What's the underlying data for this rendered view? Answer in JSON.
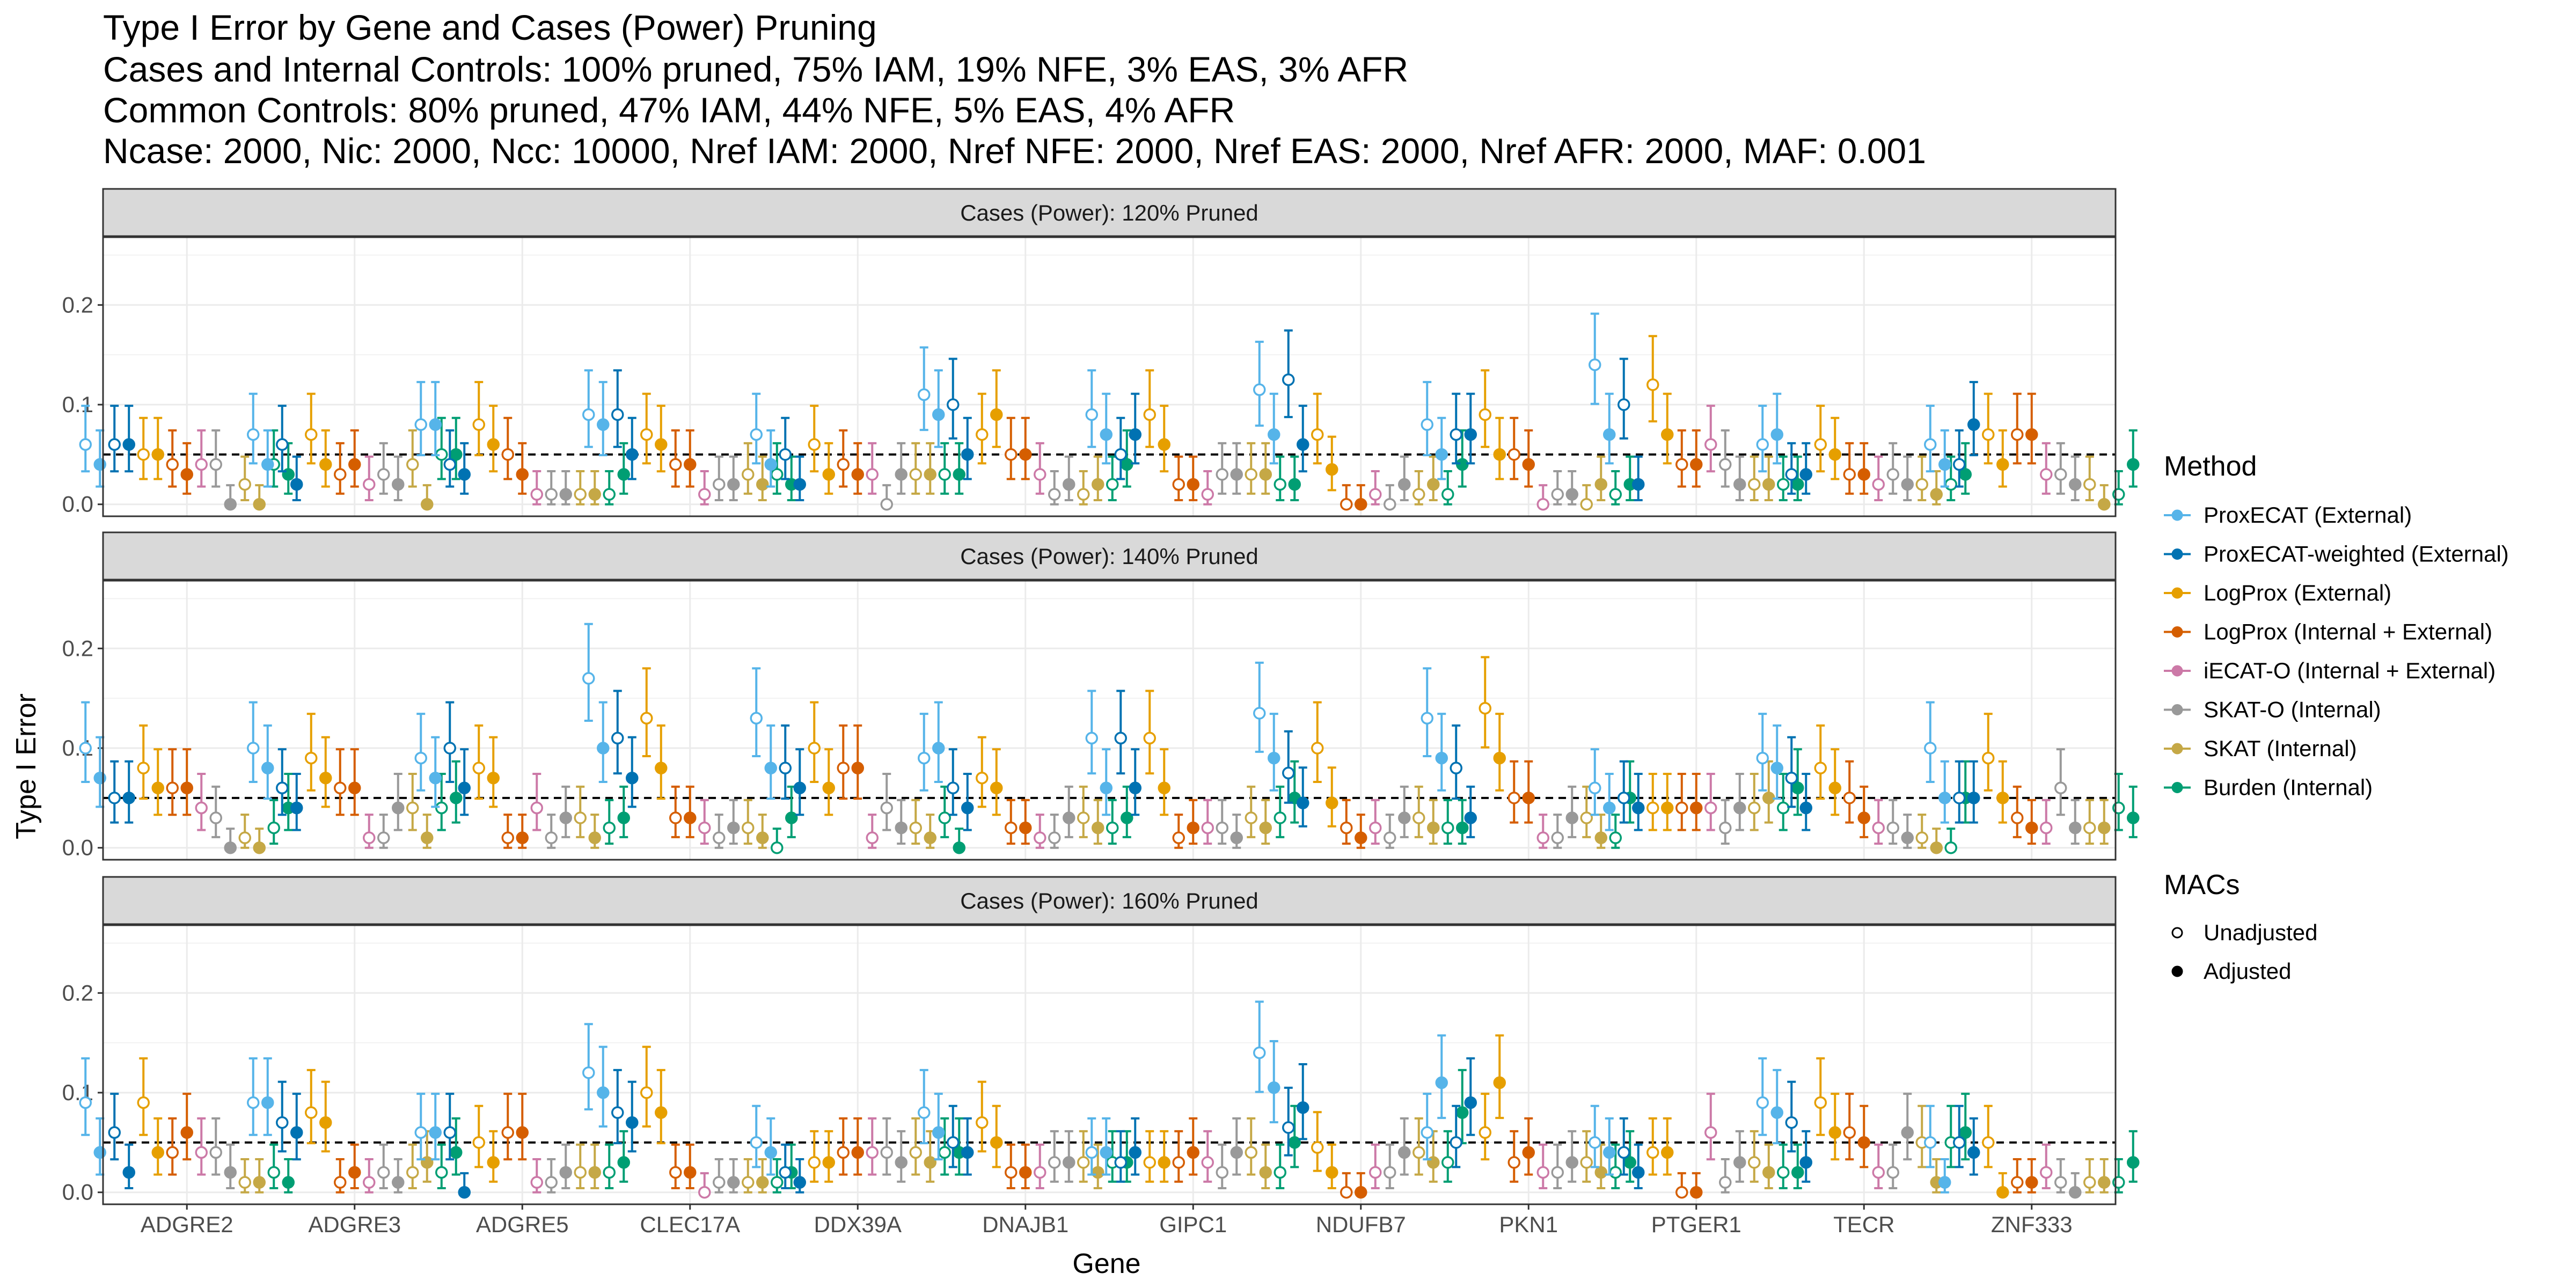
{
  "chart_data": {
    "type": "scatter",
    "title": "Type I Error by Gene and Cases (Power) Pruning",
    "subtitle": [
      "Cases and Internal Controls: 100% pruned, 75% IAM, 19% NFE, 3% EAS, 3% AFR",
      "Common Controls: 80% pruned, 47% IAM, 44% NFE, 5% EAS, 4% AFR",
      "Ncase: 2000, Nic: 2000, Ncc: 10000, Nref IAM: 2000, Nref NFE: 2000, Nref EAS: 2000, Nref AFR: 2000, MAF: 0.001"
    ],
    "xlabel": "Gene",
    "ylabel": "Type I Error",
    "ylim": [
      -0.012,
      0.268
    ],
    "yticks": [
      "0.0",
      "0.1",
      "0.2"
    ],
    "reference_line": 0.05,
    "grid": true,
    "genes": [
      "ADGRE2",
      "ADGRE3",
      "ADGRE5",
      "CLEC17A",
      "DDX39A",
      "DNAJB1",
      "GIPC1",
      "NDUFB7",
      "PKN1",
      "PTGER1",
      "TECR",
      "ZNF333"
    ],
    "legend": {
      "placement": "right",
      "method_title": "Method",
      "methods": [
        {
          "name": "ProxECAT (External)",
          "color": "#56B4E9"
        },
        {
          "name": "ProxECAT-weighted (External)",
          "color": "#0072B2"
        },
        {
          "name": "LogProx (External)",
          "color": "#E69F00"
        },
        {
          "name": "LogProx (Internal + External)",
          "color": "#D55E00"
        },
        {
          "name": "iECAT-O (Internal + External)",
          "color": "#CC79A7"
        },
        {
          "name": "SKAT-O (Internal)",
          "color": "#999999"
        },
        {
          "name": "SKAT (Internal)",
          "color": "#C5A846"
        },
        {
          "name": "Burden (Internal)",
          "color": "#009E73"
        }
      ],
      "mac_title": "MACs",
      "macs": [
        {
          "name": "Unadjusted",
          "shape": "open-circle"
        },
        {
          "name": "Adjusted",
          "shape": "filled-circle"
        }
      ]
    },
    "panels": [
      {
        "label": "Cases (Power): 120% Pruned",
        "values": [
          [
            0.06,
            0.04,
            0.06,
            0.06,
            0.05,
            0.05,
            0.04,
            0.03,
            0.04,
            0.04,
            0.0,
            0.02,
            0.0,
            0.04,
            0.03
          ],
          [
            0.07,
            0.04,
            0.06,
            0.02,
            0.07,
            0.04,
            0.03,
            0.04,
            0.02,
            0.03,
            0.02,
            0.04,
            0.0,
            0.05,
            0.05
          ],
          [
            0.08,
            0.08,
            0.04,
            0.03,
            0.08,
            0.06,
            0.05,
            0.03,
            0.01,
            0.01,
            0.01,
            0.01,
            0.01,
            0.01,
            0.03
          ],
          [
            0.09,
            0.08,
            0.09,
            0.05,
            0.07,
            0.06,
            0.04,
            0.04,
            0.01,
            0.02,
            0.02,
            0.03,
            0.02,
            0.03,
            0.02
          ],
          [
            0.07,
            0.04,
            0.05,
            0.02,
            0.06,
            0.03,
            0.04,
            0.03,
            0.03,
            0.0,
            0.03,
            0.03,
            0.03,
            0.03,
            0.03
          ],
          [
            0.11,
            0.09,
            0.1,
            0.05,
            0.07,
            0.09,
            0.05,
            0.05,
            0.03,
            0.01,
            0.02,
            0.01,
            0.02,
            0.02,
            0.04
          ],
          [
            0.09,
            0.07,
            0.05,
            0.07,
            0.09,
            0.06,
            0.02,
            0.02,
            0.01,
            0.03,
            0.03,
            0.03,
            0.03,
            0.02,
            0.02
          ],
          [
            0.115,
            0.07,
            0.125,
            0.06,
            0.07,
            0.035,
            0.0,
            0.0,
            0.01,
            0.0,
            0.02,
            0.01,
            0.02,
            0.01,
            0.04
          ],
          [
            0.08,
            0.05,
            0.07,
            0.07,
            0.09,
            0.05,
            0.05,
            0.04,
            0.0,
            0.01,
            0.01,
            0.0,
            0.02,
            0.01,
            0.02
          ],
          [
            0.14,
            0.07,
            0.1,
            0.02,
            0.12,
            0.07,
            0.04,
            0.04,
            0.06,
            0.04,
            0.02,
            0.02,
            0.02,
            0.02,
            0.02
          ],
          [
            0.06,
            0.07,
            0.03,
            0.03,
            0.06,
            0.05,
            0.03,
            0.03,
            0.02,
            0.03,
            0.02,
            0.02,
            0.01,
            0.02,
            0.03
          ],
          [
            0.06,
            0.04,
            0.04,
            0.08,
            0.07,
            0.04,
            0.07,
            0.07,
            0.03,
            0.03,
            0.02,
            0.02,
            0.0,
            0.01,
            0.04
          ]
        ]
      },
      {
        "label": "Cases (Power): 140% Pruned",
        "values": [
          [
            0.1,
            0.07,
            0.05,
            0.05,
            0.08,
            0.06,
            0.06,
            0.06,
            0.04,
            0.03,
            0.0,
            0.01,
            0.0,
            0.02,
            0.04
          ],
          [
            0.1,
            0.08,
            0.06,
            0.04,
            0.09,
            0.07,
            0.06,
            0.06,
            0.01,
            0.01,
            0.04,
            0.04,
            0.01,
            0.04,
            0.05
          ],
          [
            0.09,
            0.07,
            0.1,
            0.06,
            0.08,
            0.07,
            0.01,
            0.01,
            0.04,
            0.01,
            0.03,
            0.03,
            0.01,
            0.02,
            0.03
          ],
          [
            0.17,
            0.1,
            0.11,
            0.07,
            0.13,
            0.08,
            0.03,
            0.03,
            0.02,
            0.01,
            0.02,
            0.02,
            0.01,
            0.0,
            0.03
          ],
          [
            0.13,
            0.08,
            0.08,
            0.06,
            0.1,
            0.06,
            0.08,
            0.08,
            0.01,
            0.04,
            0.02,
            0.02,
            0.01,
            0.03,
            0.0
          ],
          [
            0.09,
            0.1,
            0.06,
            0.04,
            0.07,
            0.06,
            0.02,
            0.02,
            0.01,
            0.01,
            0.03,
            0.03,
            0.02,
            0.02,
            0.03
          ],
          [
            0.11,
            0.06,
            0.11,
            0.06,
            0.11,
            0.06,
            0.01,
            0.02,
            0.02,
            0.02,
            0.01,
            0.03,
            0.02,
            0.03,
            0.05
          ],
          [
            0.135,
            0.09,
            0.075,
            0.045,
            0.1,
            0.045,
            0.02,
            0.01,
            0.02,
            0.01,
            0.03,
            0.03,
            0.02,
            0.02,
            0.02
          ],
          [
            0.13,
            0.09,
            0.08,
            0.03,
            0.14,
            0.09,
            0.05,
            0.05,
            0.01,
            0.01,
            0.03,
            0.03,
            0.01,
            0.01,
            0.05
          ],
          [
            0.06,
            0.04,
            0.05,
            0.04,
            0.04,
            0.04,
            0.04,
            0.04,
            0.04,
            0.02,
            0.04,
            0.04,
            0.05,
            0.04,
            0.06
          ],
          [
            0.09,
            0.08,
            0.07,
            0.04,
            0.08,
            0.06,
            0.05,
            0.03,
            0.02,
            0.02,
            0.01,
            0.01,
            0.0,
            0.0,
            0.05
          ],
          [
            0.1,
            0.05,
            0.05,
            0.05,
            0.09,
            0.05,
            0.03,
            0.02,
            0.02,
            0.06,
            0.02,
            0.02,
            0.02,
            0.04,
            0.03
          ]
        ]
      },
      {
        "label": "Cases (Power): 160% Pruned",
        "values": [
          [
            0.09,
            0.04,
            0.06,
            0.02,
            0.09,
            0.04,
            0.04,
            0.06,
            0.04,
            0.04,
            0.02,
            0.01,
            0.01,
            0.02,
            0.01
          ],
          [
            0.09,
            0.09,
            0.07,
            0.06,
            0.08,
            0.07,
            0.01,
            0.02,
            0.01,
            0.02,
            0.01,
            0.02,
            0.03,
            0.02,
            0.04
          ],
          [
            0.06,
            0.06,
            0.06,
            0.0,
            0.05,
            0.03,
            0.06,
            0.06,
            0.01,
            0.01,
            0.02,
            0.02,
            0.02,
            0.02,
            0.03
          ],
          [
            0.12,
            0.1,
            0.08,
            0.07,
            0.1,
            0.08,
            0.02,
            0.02,
            0.0,
            0.01,
            0.01,
            0.01,
            0.01,
            0.01,
            0.02
          ],
          [
            0.05,
            0.04,
            0.02,
            0.01,
            0.03,
            0.03,
            0.04,
            0.04,
            0.04,
            0.04,
            0.03,
            0.04,
            0.03,
            0.04,
            0.04
          ],
          [
            0.08,
            0.06,
            0.05,
            0.04,
            0.07,
            0.05,
            0.02,
            0.02,
            0.02,
            0.03,
            0.03,
            0.03,
            0.02,
            0.03,
            0.03
          ],
          [
            0.04,
            0.04,
            0.03,
            0.04,
            0.03,
            0.03,
            0.03,
            0.04,
            0.03,
            0.02,
            0.04,
            0.04,
            0.02,
            0.02,
            0.05
          ],
          [
            0.14,
            0.105,
            0.065,
            0.085,
            0.045,
            0.02,
            0.0,
            0.0,
            0.02,
            0.02,
            0.04,
            0.04,
            0.03,
            0.03,
            0.08
          ],
          [
            0.06,
            0.11,
            0.05,
            0.09,
            0.06,
            0.11,
            0.03,
            0.04,
            0.02,
            0.02,
            0.03,
            0.03,
            0.02,
            0.02,
            0.03
          ],
          [
            0.05,
            0.04,
            0.04,
            0.02,
            0.04,
            0.04,
            0.0,
            0.0,
            0.06,
            0.01,
            0.03,
            0.03,
            0.02,
            0.02,
            0.02
          ],
          [
            0.09,
            0.08,
            0.07,
            0.03,
            0.09,
            0.06,
            0.06,
            0.05,
            0.02,
            0.02,
            0.06,
            0.05,
            0.01,
            0.05,
            0.06
          ],
          [
            0.05,
            0.01,
            0.05,
            0.04,
            0.05,
            0.0,
            0.01,
            0.01,
            0.02,
            0.01,
            0.0,
            0.01,
            0.01,
            0.01,
            0.03
          ]
        ]
      }
    ]
  }
}
